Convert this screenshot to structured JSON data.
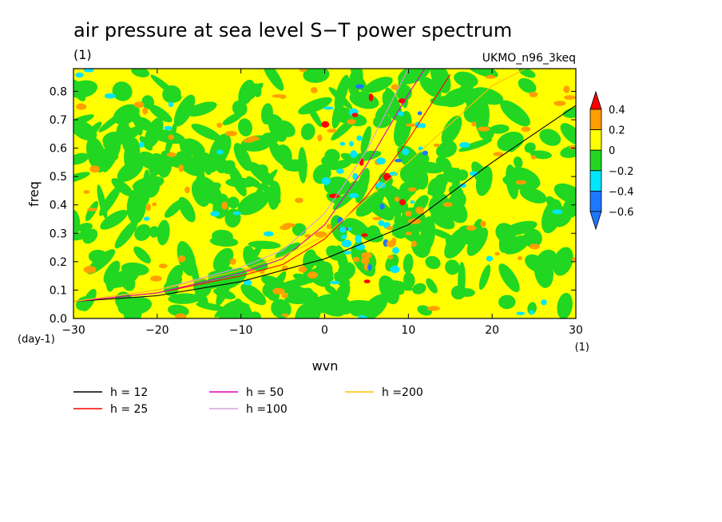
{
  "chart_data": {
    "type": "heatmap",
    "title": "air pressure at sea level S−T power spectrum",
    "subtitle_left": "(1)",
    "subtitle_right": "UKMO_n96_3keq",
    "xlabel": "wvn",
    "ylabel": "freq",
    "x_unit": "(1)",
    "y_unit": "(day-1)",
    "xlim": [
      -30,
      30
    ],
    "ylim": [
      0,
      0.88
    ],
    "x_ticks": [
      -30,
      -20,
      -10,
      0,
      10,
      20,
      30
    ],
    "x_tick_labels": [
      "−30",
      "−20",
      "−10",
      "0",
      "10",
      "20",
      "30"
    ],
    "y_ticks": [
      0,
      0.1,
      0.2,
      0.3,
      0.4,
      0.5,
      0.6,
      0.7,
      0.8
    ],
    "y_tick_labels": [
      "0.0",
      "0.1",
      "0.2",
      "0.3",
      "0.4",
      "0.5",
      "0.6",
      "0.7",
      "0.8"
    ],
    "colorbar": {
      "levels": [
        -0.6,
        -0.4,
        -0.2,
        0,
        0.2,
        0.4
      ],
      "level_labels": [
        "−0.6",
        "−0.4",
        "−0.2",
        "0",
        "0.2",
        "0.4"
      ],
      "colors": [
        "#1e78ff",
        "#1e78ff",
        "#00e6ff",
        "#22d722",
        "#ffff00",
        "#ff9f00",
        "#ff0000"
      ]
    },
    "series": [
      {
        "name": "h = 12",
        "color": "#000000",
        "points": [
          [
            -30,
            0.06
          ],
          [
            -20,
            0.08
          ],
          [
            -10,
            0.13
          ],
          [
            0,
            0.21
          ],
          [
            10,
            0.33
          ],
          [
            20,
            0.55
          ],
          [
            30,
            0.75
          ]
        ]
      },
      {
        "name": "h = 25",
        "color": "#ff0000",
        "points": [
          [
            -30,
            0.06
          ],
          [
            -20,
            0.09
          ],
          [
            -10,
            0.15
          ],
          [
            -5,
            0.19
          ],
          [
            0,
            0.28
          ],
          [
            5,
            0.43
          ],
          [
            10,
            0.63
          ],
          [
            15,
            0.86
          ]
        ]
      },
      {
        "name": "h = 50",
        "color": "#e000c0",
        "points": [
          [
            -30,
            0.06
          ],
          [
            -20,
            0.09
          ],
          [
            -10,
            0.16
          ],
          [
            -5,
            0.21
          ],
          [
            0,
            0.33
          ],
          [
            5,
            0.54
          ],
          [
            10,
            0.79
          ],
          [
            15,
            1.02
          ]
        ]
      },
      {
        "name": "h =100",
        "color": "#d8a0e0",
        "points": [
          [
            -30,
            0.06
          ],
          [
            -20,
            0.1
          ],
          [
            -10,
            0.18
          ],
          [
            -5,
            0.24
          ],
          [
            0,
            0.37
          ],
          [
            5,
            0.59
          ],
          [
            10,
            0.88
          ]
        ]
      },
      {
        "name": "h =200",
        "color": "#ffc000",
        "points": [
          [
            -30,
            0.06
          ],
          [
            -20,
            0.1
          ],
          [
            -10,
            0.17
          ],
          [
            -5,
            0.22
          ],
          [
            0,
            0.29
          ],
          [
            10,
            0.55
          ],
          [
            20,
            0.82
          ],
          [
            24,
            0.88
          ]
        ]
      }
    ]
  }
}
